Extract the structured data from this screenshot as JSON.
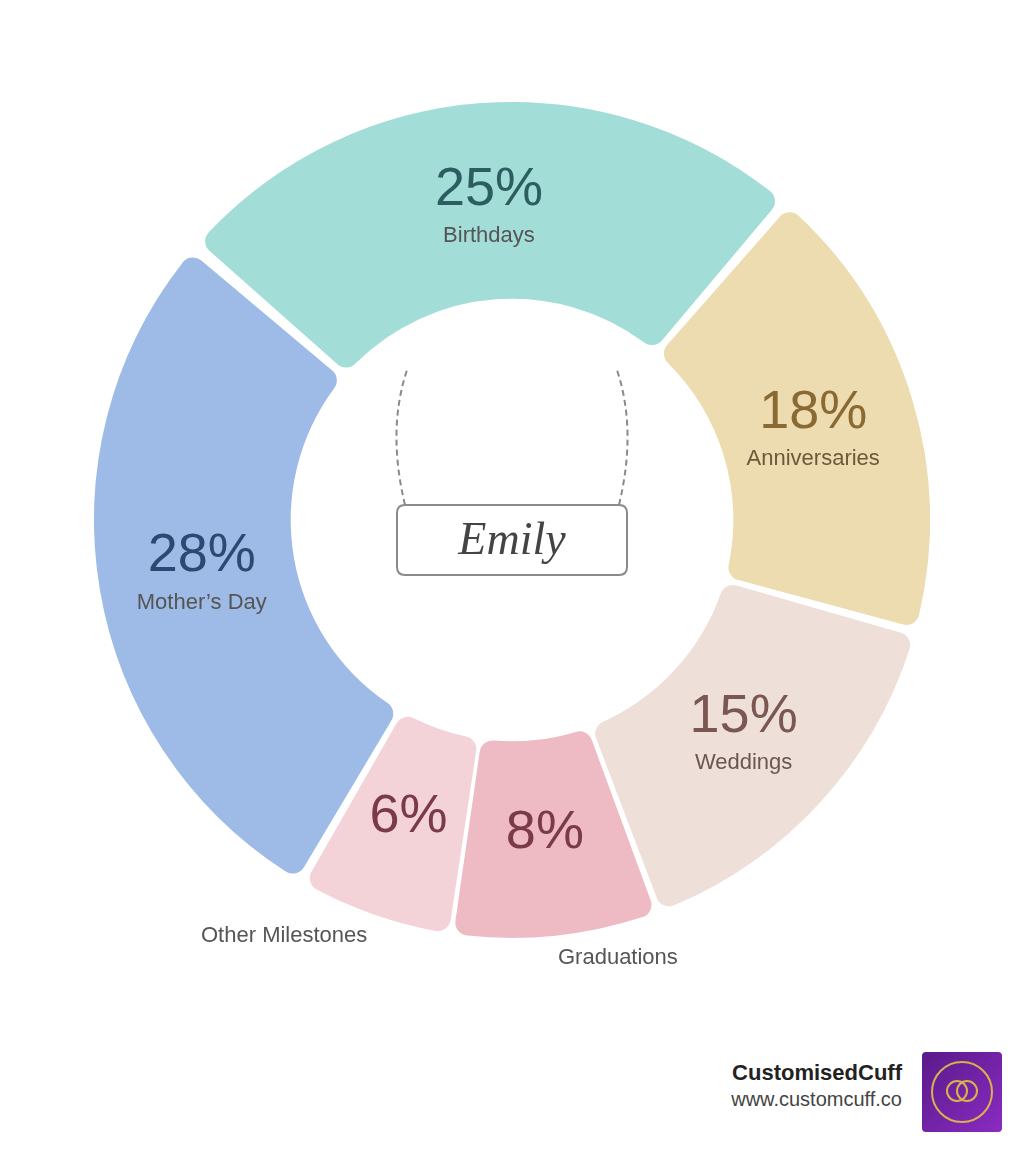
{
  "chart_data": {
    "type": "doughnut",
    "categories": [
      "Mother’s Day",
      "Birthdays",
      "Anniversaries",
      "Weddings",
      "Graduations",
      "Other Milestones"
    ],
    "values": [
      28,
      25,
      18,
      15,
      8,
      6
    ],
    "value_labels": [
      "28%",
      "25%",
      "18%",
      "15%",
      "8%",
      "6%"
    ],
    "data_labels": true,
    "colors": [
      "#9dbbe6",
      "#a3ddd7",
      "#ecdcb0",
      "#eedfd9",
      "#eebac3",
      "#f3d3d7"
    ],
    "center_label": "Emily"
  },
  "footer": {
    "brand": "CustomisedCuff",
    "url": "www.customcuff.co"
  }
}
